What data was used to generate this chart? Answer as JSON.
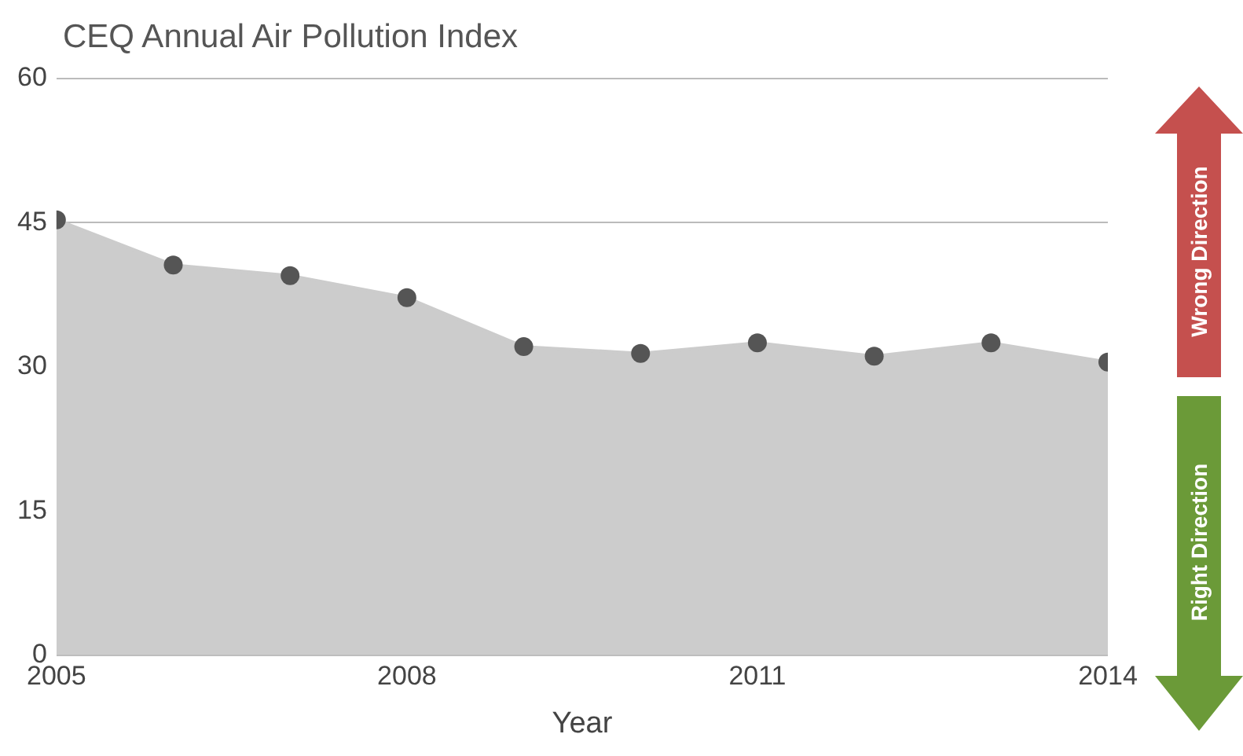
{
  "chart_data": {
    "type": "area",
    "title": "CEQ Annual Air Pollution Index",
    "xlabel": "Year",
    "x": [
      2005,
      2006,
      2007,
      2008,
      2009,
      2010,
      2011,
      2012,
      2013,
      2014
    ],
    "series": [
      {
        "color": "#cccccc",
        "values": [
          45.3,
          40.6,
          39.5,
          37.2,
          32.1,
          31.4,
          32.5,
          31.1,
          32.5,
          30.5
        ]
      }
    ],
    "xlim": [
      2005,
      2014
    ],
    "xticks": [
      2005,
      2008,
      2011,
      2014
    ],
    "ylim": [
      0,
      60
    ],
    "yticks": [
      0,
      15,
      30,
      45,
      60
    ],
    "grid": "y",
    "legend": false,
    "marker": "circle",
    "annotations": [
      "Wrong Direction",
      "Right Direction"
    ]
  }
}
